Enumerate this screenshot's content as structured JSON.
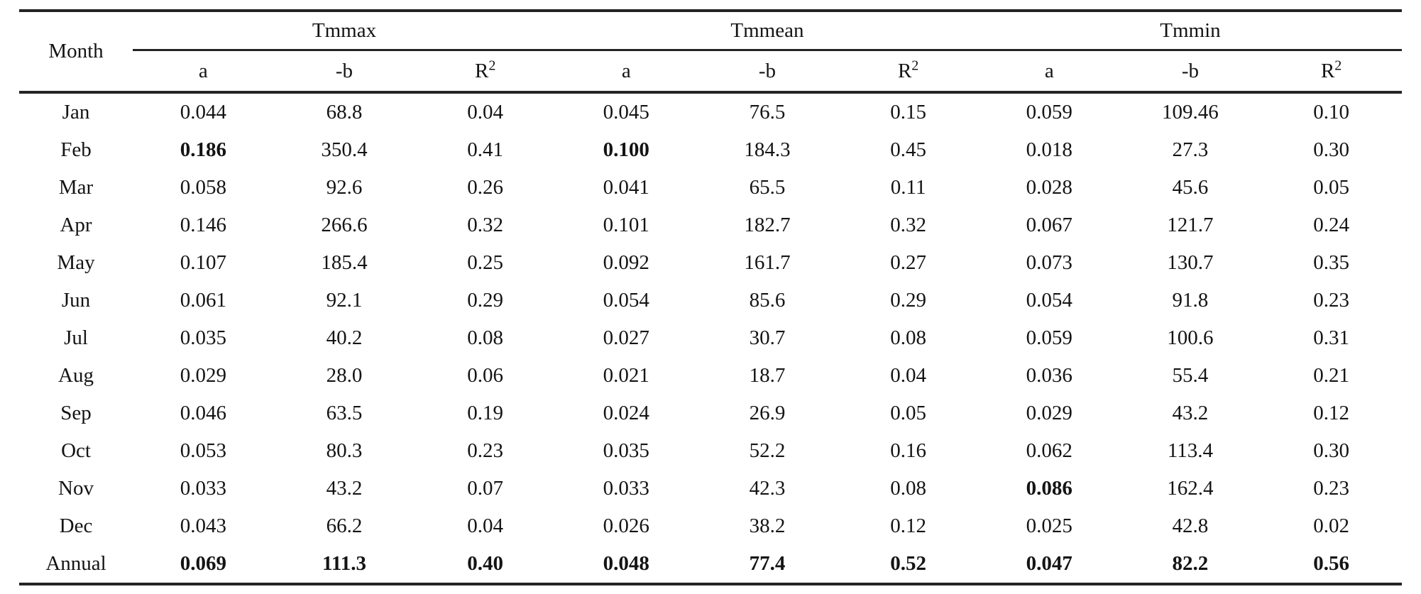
{
  "table": {
    "month_header": "Month",
    "group_headers": [
      "Tmmax",
      "Tmmean",
      "Tmmin"
    ],
    "sub_headers": {
      "a": "a",
      "b": "-b",
      "r": "R",
      "r_sup": "2"
    },
    "rows": [
      {
        "month": "Jan",
        "values": [
          "0.044",
          "68.8",
          "0.04",
          "0.045",
          "76.5",
          "0.15",
          "0.059",
          "109.46",
          "0.10"
        ]
      },
      {
        "month": "Feb",
        "values": [
          "0.186",
          "350.4",
          "0.41",
          "0.100",
          "184.3",
          "0.45",
          "0.018",
          "27.3",
          "0.30"
        ]
      },
      {
        "month": "Mar",
        "values": [
          "0.058",
          "92.6",
          "0.26",
          "0.041",
          "65.5",
          "0.11",
          "0.028",
          "45.6",
          "0.05"
        ]
      },
      {
        "month": "Apr",
        "values": [
          "0.146",
          "266.6",
          "0.32",
          "0.101",
          "182.7",
          "0.32",
          "0.067",
          "121.7",
          "0.24"
        ]
      },
      {
        "month": "May",
        "values": [
          "0.107",
          "185.4",
          "0.25",
          "0.092",
          "161.7",
          "0.27",
          "0.073",
          "130.7",
          "0.35"
        ]
      },
      {
        "month": "Jun",
        "values": [
          "0.061",
          "92.1",
          "0.29",
          "0.054",
          "85.6",
          "0.29",
          "0.054",
          "91.8",
          "0.23"
        ]
      },
      {
        "month": "Jul",
        "values": [
          "0.035",
          "40.2",
          "0.08",
          "0.027",
          "30.7",
          "0.08",
          "0.059",
          "100.6",
          "0.31"
        ]
      },
      {
        "month": "Aug",
        "values": [
          "0.029",
          "28.0",
          "0.06",
          "0.021",
          "18.7",
          "0.04",
          "0.036",
          "55.4",
          "0.21"
        ]
      },
      {
        "month": "Sep",
        "values": [
          "0.046",
          "63.5",
          "0.19",
          "0.024",
          "26.9",
          "0.05",
          "0.029",
          "43.2",
          "0.12"
        ]
      },
      {
        "month": "Oct",
        "values": [
          "0.053",
          "80.3",
          "0.23",
          "0.035",
          "52.2",
          "0.16",
          "0.062",
          "113.4",
          "0.30"
        ]
      },
      {
        "month": "Nov",
        "values": [
          "0.033",
          "43.2",
          "0.07",
          "0.033",
          "42.3",
          "0.08",
          "0.086",
          "162.4",
          "0.23"
        ]
      },
      {
        "month": "Dec",
        "values": [
          "0.043",
          "66.2",
          "0.04",
          "0.026",
          "38.2",
          "0.12",
          "0.025",
          "42.8",
          "0.02"
        ]
      },
      {
        "month": "Annual",
        "values": [
          "0.069",
          "111.3",
          "0.40",
          "0.048",
          "77.4",
          "0.52",
          "0.047",
          "82.2",
          "0.56"
        ]
      }
    ]
  }
}
